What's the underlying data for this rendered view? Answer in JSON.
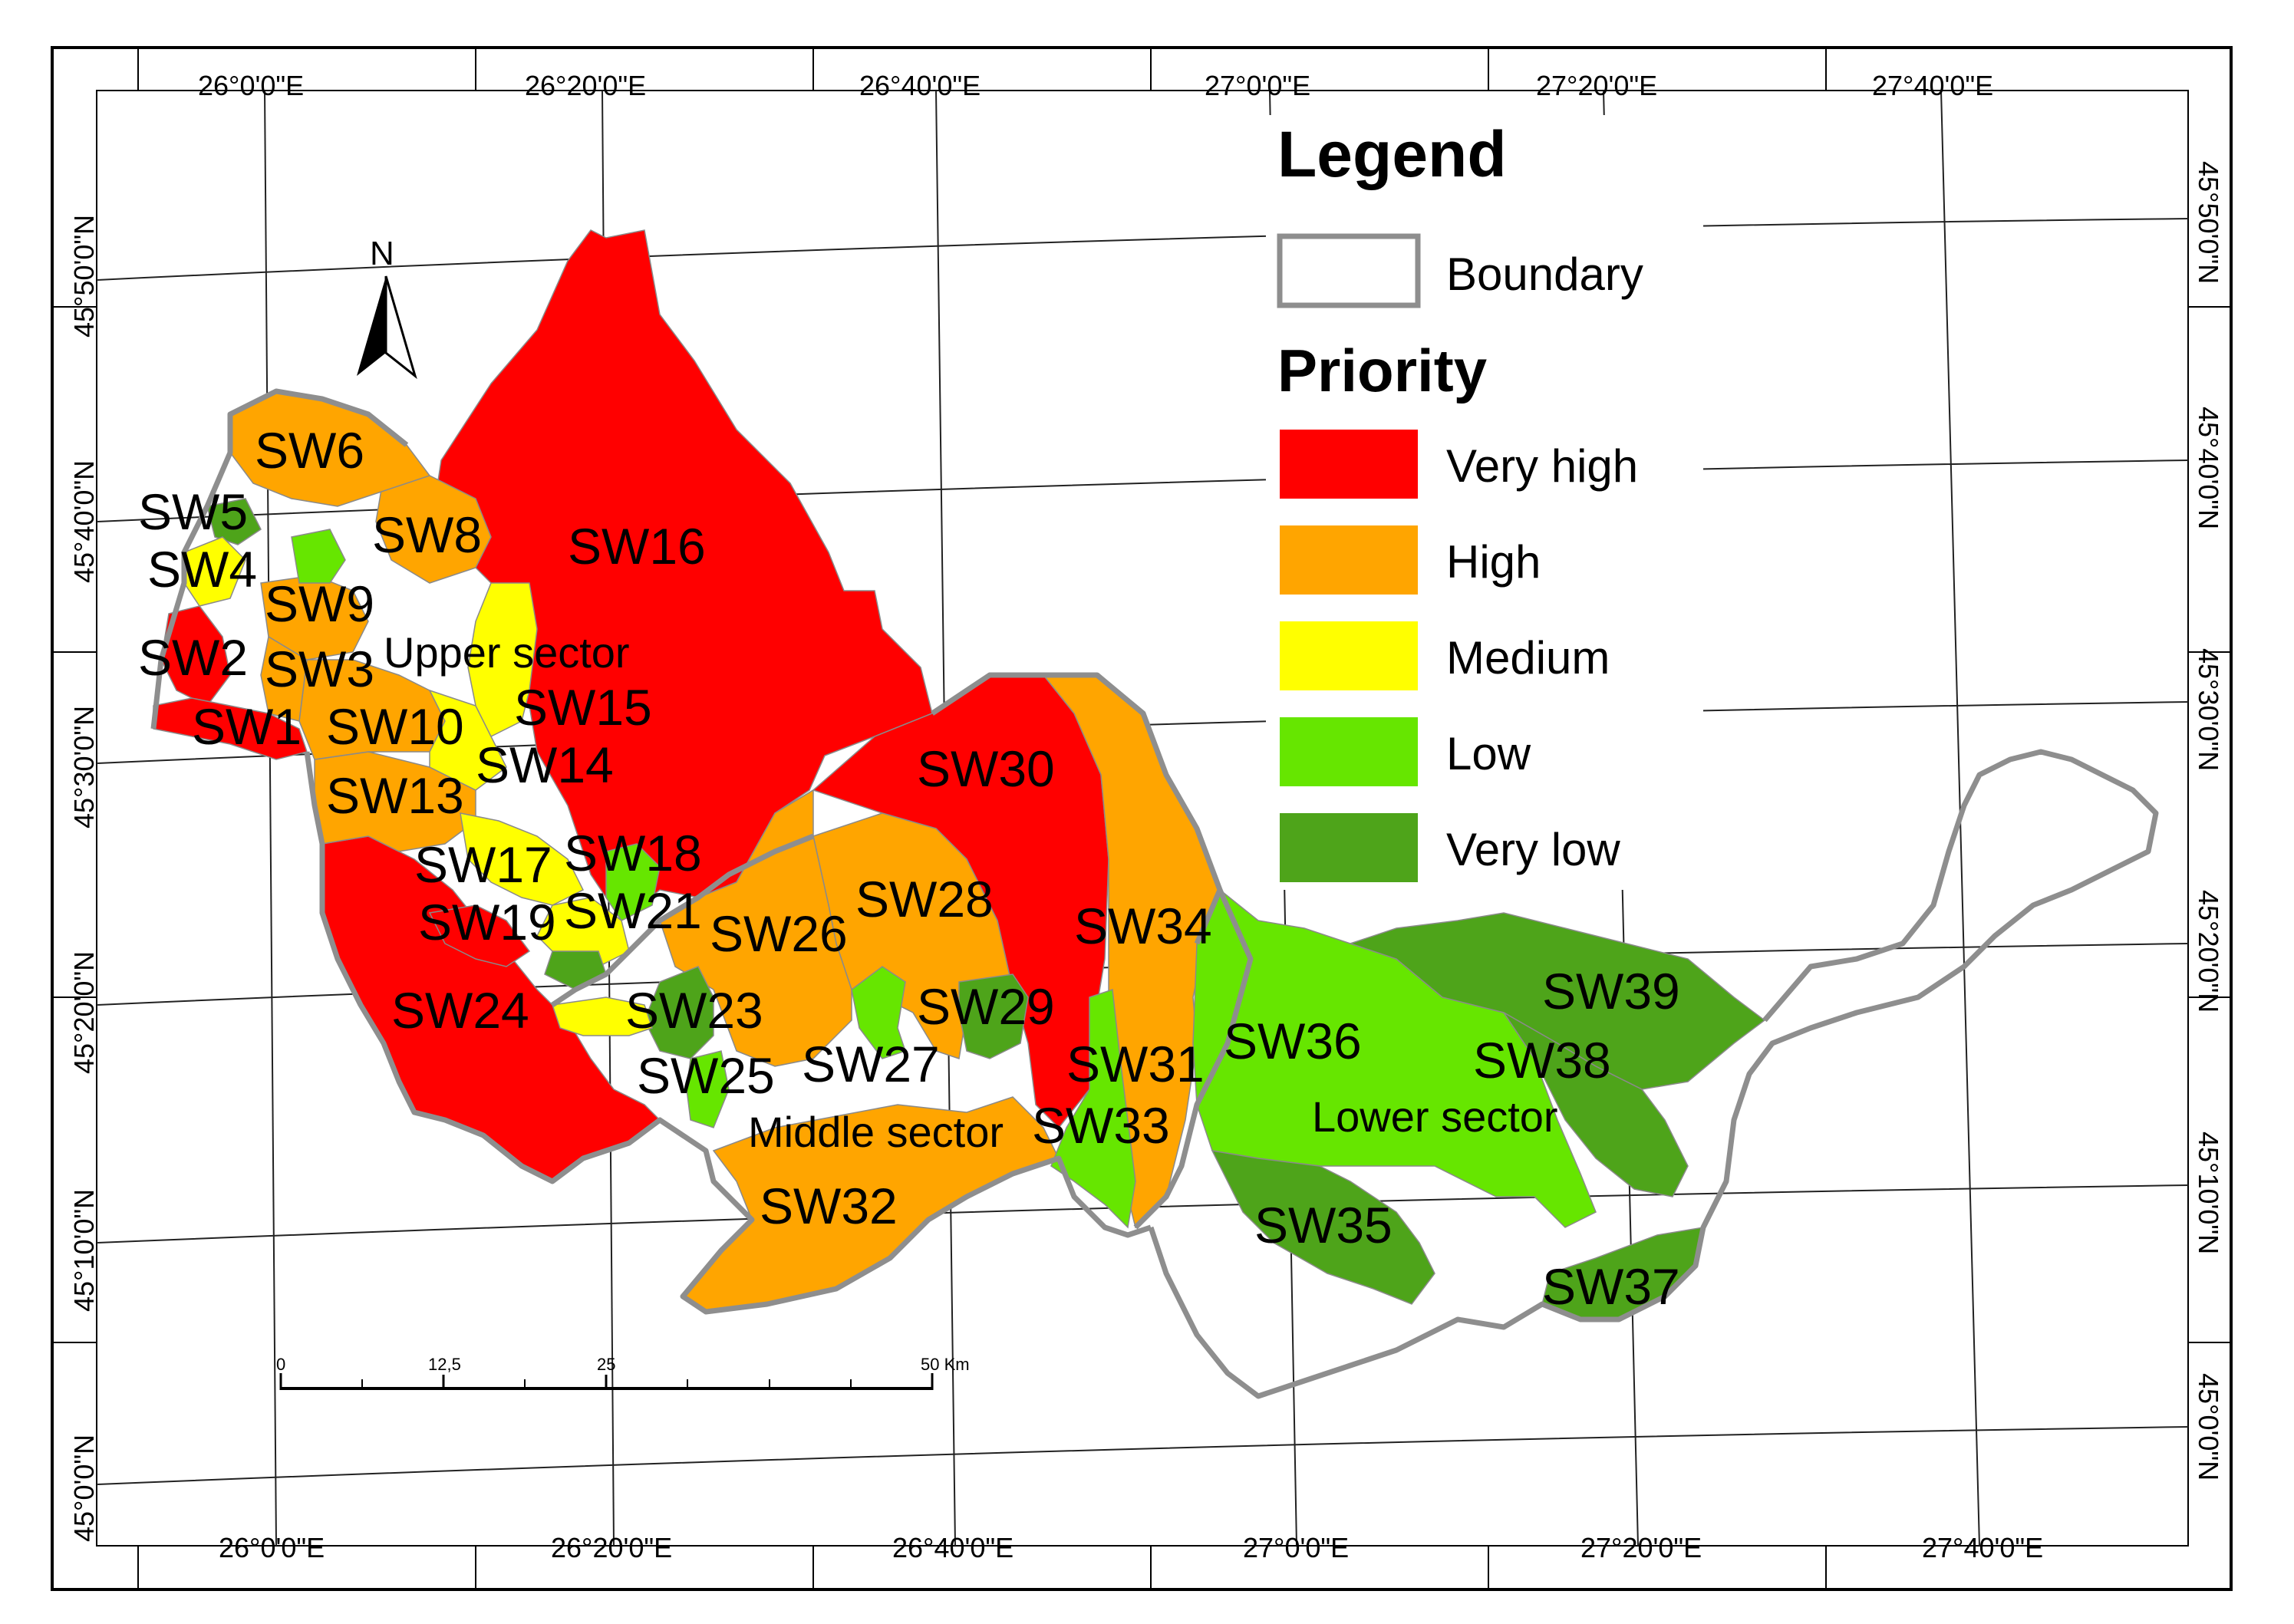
{
  "colors": {
    "very_high": "#ff0000",
    "high": "#ffa500",
    "medium": "#ffff00",
    "low": "#66e600",
    "very_low": "#4ea41a",
    "boundary": "#8e8e8e"
  },
  "north_arrow": {
    "label": "N",
    "icon": "north-arrow-icon"
  },
  "coords": {
    "top": [
      "26°0'0\"E",
      "26°20'0\"E",
      "26°40'0\"E",
      "27°0'0\"E",
      "27°20'0\"E",
      "27°40'0\"E"
    ],
    "bottom": [
      "26°0'0\"E",
      "26°20'0\"E",
      "26°40'0\"E",
      "27°0'0\"E",
      "27°20'0\"E",
      "27°40'0\"E"
    ],
    "left": [
      "45°50'0\"N",
      "45°40'0\"N",
      "45°30'0\"N",
      "45°20'0\"N",
      "45°10'0\"N",
      "45°0'0\"N"
    ],
    "right": [
      "45°50'0\"N",
      "45°40'0\"N",
      "45°30'0\"N",
      "45°20'0\"N",
      "45°10'0\"N",
      "45°0'0\"N"
    ]
  },
  "scale_bar": {
    "labels": [
      "0",
      "12,5",
      "25",
      "50 Km"
    ]
  },
  "sectors": {
    "upper": "Upper sector",
    "middle": "Middle sector",
    "lower": "Lower sector"
  },
  "subwatersheds": [
    {
      "id": "SW1",
      "priority": "very_high"
    },
    {
      "id": "SW2",
      "priority": "very_high"
    },
    {
      "id": "SW3",
      "priority": "high"
    },
    {
      "id": "SW4",
      "priority": "medium"
    },
    {
      "id": "SW5",
      "priority": "very_low"
    },
    {
      "id": "SW6",
      "priority": "high"
    },
    {
      "id": "SW8",
      "priority": "high"
    },
    {
      "id": "SW9",
      "priority": "high"
    },
    {
      "id": "SW10",
      "priority": "high"
    },
    {
      "id": "SW13",
      "priority": "high"
    },
    {
      "id": "SW14",
      "priority": "medium"
    },
    {
      "id": "SW15",
      "priority": "medium"
    },
    {
      "id": "SW16",
      "priority": "very_high"
    },
    {
      "id": "SW17",
      "priority": "medium"
    },
    {
      "id": "SW18",
      "priority": "low"
    },
    {
      "id": "SW19",
      "priority": "very_high"
    },
    {
      "id": "SW21",
      "priority": "medium"
    },
    {
      "id": "SW23",
      "priority": "very_low"
    },
    {
      "id": "SW24",
      "priority": "very_high"
    },
    {
      "id": "SW25",
      "priority": "low"
    },
    {
      "id": "SW26",
      "priority": "high"
    },
    {
      "id": "SW27",
      "priority": "low"
    },
    {
      "id": "SW28",
      "priority": "high"
    },
    {
      "id": "SW29",
      "priority": "very_low"
    },
    {
      "id": "SW30",
      "priority": "very_high"
    },
    {
      "id": "SW31",
      "priority": "low"
    },
    {
      "id": "SW32",
      "priority": "high"
    },
    {
      "id": "SW33",
      "priority": "low"
    },
    {
      "id": "SW34",
      "priority": "high"
    },
    {
      "id": "SW35",
      "priority": "very_low"
    },
    {
      "id": "SW36",
      "priority": "low"
    },
    {
      "id": "SW37",
      "priority": "very_low"
    },
    {
      "id": "SW38",
      "priority": "very_low"
    },
    {
      "id": "SW39",
      "priority": "very_low"
    }
  ],
  "legend": {
    "title": "Legend",
    "boundary_label": "Boundary",
    "priority_title": "Priority",
    "items": [
      {
        "label": "Very high",
        "color": "#ff0000"
      },
      {
        "label": "High",
        "color": "#ffa500"
      },
      {
        "label": "Medium",
        "color": "#ffff00"
      },
      {
        "label": "Low",
        "color": "#66e600"
      },
      {
        "label": "Very low",
        "color": "#4ea41a"
      }
    ]
  }
}
